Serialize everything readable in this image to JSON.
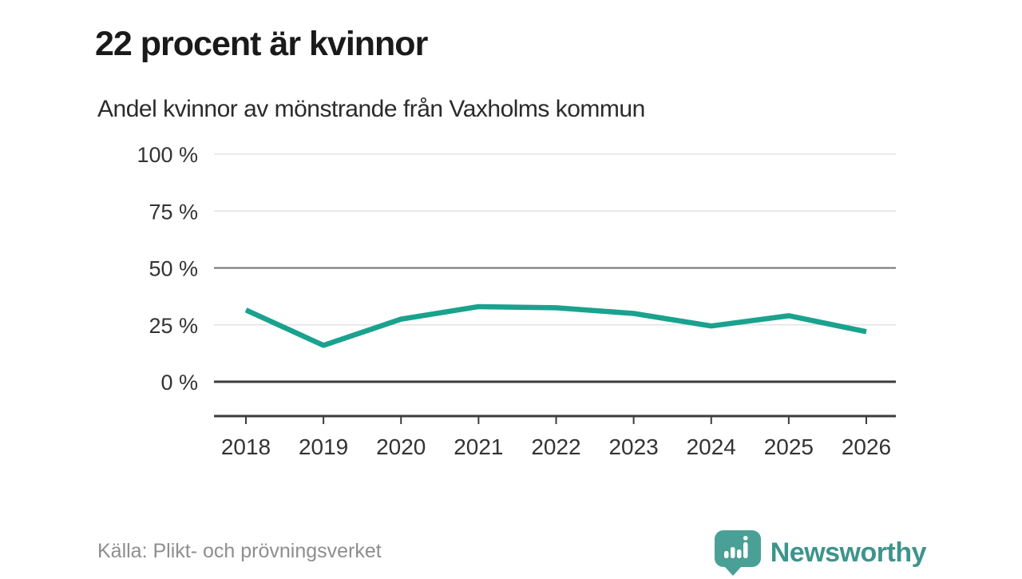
{
  "header": {
    "title": "22 procent är kvinnor",
    "subtitle": "Andel kvinnor av mönstrande från Vaxholms kommun"
  },
  "chart_data": {
    "type": "line",
    "title": "22 procent är kvinnor",
    "subtitle": "Andel kvinnor av mönstrande från Vaxholms kommun",
    "categories": [
      "2018",
      "2019",
      "2020",
      "2021",
      "2022",
      "2023",
      "2024",
      "2025",
      "2026"
    ],
    "series": [
      {
        "name": "Andel kvinnor av mönstrande",
        "values": [
          31.5,
          16,
          27.5,
          33,
          32.5,
          30,
          24.5,
          29,
          22
        ]
      }
    ],
    "xlabel": "",
    "ylabel": "",
    "ylim": [
      0,
      100
    ],
    "yticks": [
      0,
      25,
      50,
      75,
      100
    ],
    "ytick_suffix": " %",
    "grid": "horizontal",
    "legend": "none",
    "line_color": "#1aa28e",
    "gridline_light_color": "#e3e3e3",
    "gridline_mid_color": "#6f6f6f",
    "axis_color": "#3c3c3c"
  },
  "footer": {
    "source": "Källa: Plikt- och prövningsverket",
    "brand_name": "Newsworthy",
    "brand_color": "#3d948d",
    "brand_icon": "speech-bubble-bar-chart-exclamation",
    "brand_icon_color": "#4aa096"
  }
}
